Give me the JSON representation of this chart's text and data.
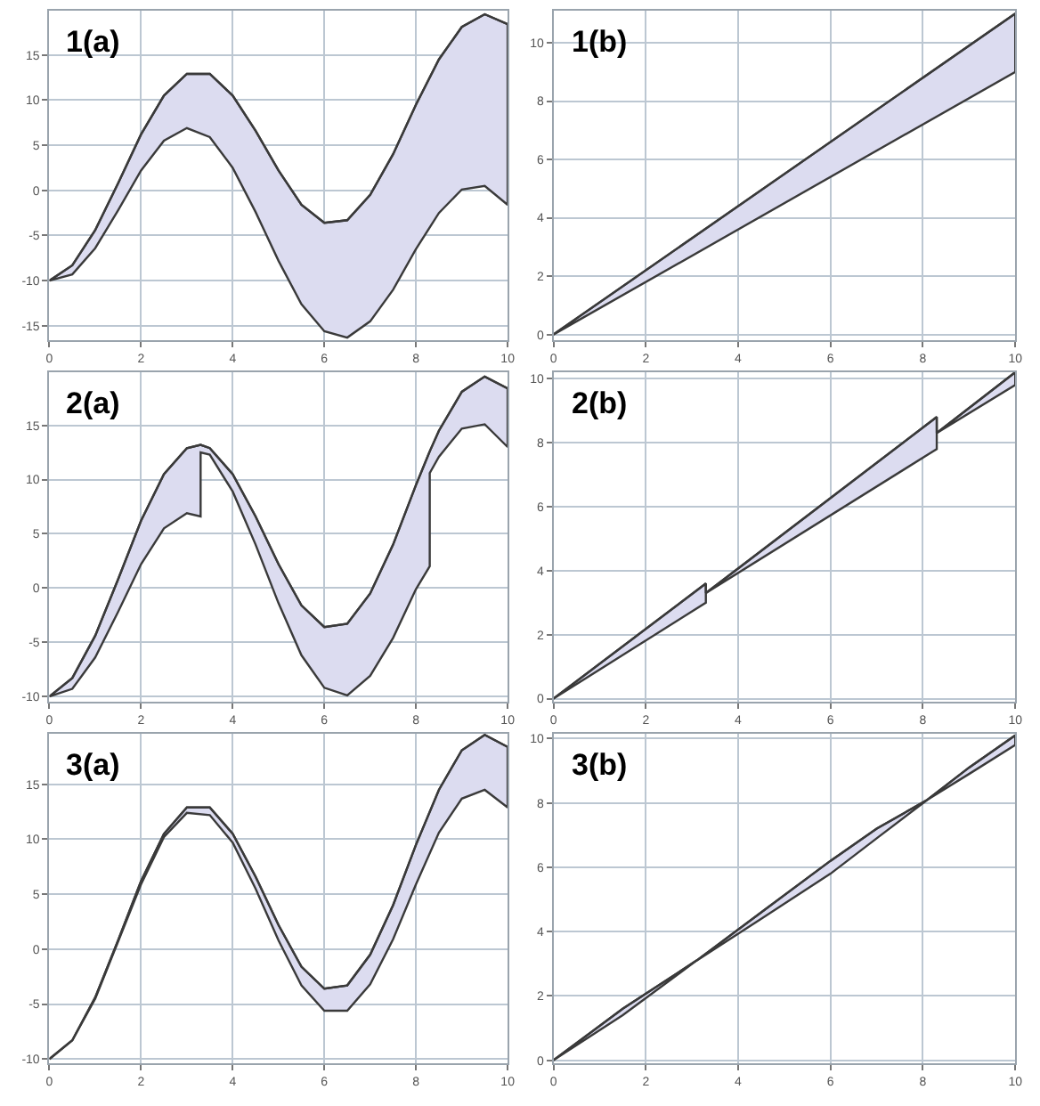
{
  "chart_data": [
    {
      "type": "line",
      "title": "1(a)",
      "xlim": [
        0,
        10
      ],
      "xticks": [
        0,
        2,
        4,
        6,
        8,
        10
      ],
      "ylim": [
        -16.6,
        19.9
      ],
      "yticks": [
        -15,
        -10,
        -5,
        0,
        5,
        10,
        15
      ],
      "grid": true,
      "series": [
        {
          "color": "#3a3a3a",
          "x": [
            0,
            0.5,
            1,
            1.5,
            2,
            2.5,
            3,
            3.5,
            4,
            4.5,
            5,
            5.5,
            6,
            6.5,
            7,
            7.5,
            8,
            8.5,
            9,
            9.5,
            10
          ],
          "values": [
            -10,
            -8.3,
            -4.4,
            0.8,
            6.2,
            10.5,
            12.9,
            12.9,
            10.5,
            6.6,
            2.2,
            -1.6,
            -3.6,
            -3.3,
            -0.5,
            4.0,
            9.5,
            14.5,
            18.1,
            19.5,
            18.4
          ],
          "upper": [
            -10,
            -8.3,
            -4.4,
            0.8,
            6.2,
            10.5,
            12.9,
            12.9,
            10.5,
            6.6,
            2.2,
            -1.6,
            -3.6,
            -3.3,
            -0.5,
            4.0,
            9.5,
            14.5,
            18.1,
            19.5,
            18.4
          ],
          "lower": [
            -10,
            -9.3,
            -6.4,
            -2.2,
            2.2,
            5.5,
            6.9,
            5.9,
            2.5,
            -2.4,
            -7.8,
            -12.6,
            -15.6,
            -16.3,
            -14.5,
            -11.0,
            -6.5,
            -2.5,
            0.1,
            0.5,
            -1.6
          ]
        }
      ]
    },
    {
      "type": "line",
      "title": "1(b)",
      "xlim": [
        0,
        10
      ],
      "xticks": [
        0,
        2,
        4,
        6,
        8,
        10
      ],
      "ylim": [
        -0.2,
        11.1
      ],
      "yticks": [
        0,
        2,
        4,
        6,
        8,
        10
      ],
      "grid": true,
      "series": [
        {
          "color": "#3a3a3a",
          "x": [
            0,
            10
          ],
          "values": [
            0,
            11
          ],
          "upper": [
            0,
            11
          ],
          "lower": [
            0,
            9
          ]
        }
      ]
    },
    {
      "type": "line",
      "title": "2(a)",
      "xlim": [
        0,
        10
      ],
      "xticks": [
        0,
        2,
        4,
        6,
        8,
        10
      ],
      "ylim": [
        -10.5,
        19.9
      ],
      "yticks": [
        -10,
        -5,
        0,
        5,
        10,
        15
      ],
      "grid": true,
      "series": [
        {
          "color": "#3a3a3a",
          "x": [
            0,
            0.5,
            1,
            1.5,
            2,
            2.5,
            3,
            3.3,
            3.3,
            3.5,
            4,
            4.5,
            5,
            5.5,
            6,
            6.5,
            7,
            7.5,
            8,
            8.3,
            8.3,
            8.5,
            9,
            9.5,
            10
          ],
          "values": [
            -10,
            -8.3,
            -4.4,
            0.8,
            6.2,
            10.5,
            12.9,
            13.2,
            13.2,
            12.9,
            10.5,
            6.6,
            2.2,
            -1.6,
            -3.6,
            -3.3,
            -0.5,
            4.0,
            9.5,
            12.6,
            12.6,
            14.5,
            18.1,
            19.5,
            18.4
          ],
          "upper": [
            -10,
            -8.3,
            -4.4,
            0.8,
            6.2,
            10.5,
            12.9,
            13.2,
            13.2,
            12.9,
            10.5,
            6.6,
            2.2,
            -1.6,
            -3.6,
            -3.3,
            -0.5,
            4.0,
            9.5,
            12.6,
            12.6,
            14.5,
            18.1,
            19.5,
            18.4
          ],
          "lower": [
            -10,
            -9.3,
            -6.4,
            -2.2,
            2.2,
            5.5,
            6.9,
            6.6,
            12.5,
            12.3,
            8.9,
            4.0,
            -1.4,
            -6.2,
            -9.2,
            -9.9,
            -8.1,
            -4.6,
            -0.1,
            2.0,
            10.6,
            12.1,
            14.7,
            15.1,
            13.0
          ]
        }
      ]
    },
    {
      "type": "line",
      "title": "2(b)",
      "xlim": [
        0,
        10
      ],
      "xticks": [
        0,
        2,
        4,
        6,
        8,
        10
      ],
      "ylim": [
        -0.1,
        10.2
      ],
      "yticks": [
        0,
        2,
        4,
        6,
        8,
        10
      ],
      "grid": true,
      "series": [
        {
          "color": "#3a3a3a",
          "x": [
            0,
            3.3,
            3.3,
            8.3,
            8.3,
            10
          ],
          "values": [
            0,
            3.6,
            3.3,
            8.8,
            8.3,
            10.2
          ],
          "upper": [
            0,
            3.6,
            3.3,
            8.8,
            8.3,
            10.2
          ],
          "lower": [
            0,
            3.0,
            3.3,
            7.8,
            8.3,
            9.8
          ]
        }
      ]
    },
    {
      "type": "line",
      "title": "3(a)",
      "xlim": [
        0,
        10
      ],
      "xticks": [
        0,
        2,
        4,
        6,
        8,
        10
      ],
      "ylim": [
        -10.4,
        19.6
      ],
      "yticks": [
        -10,
        -5,
        0,
        5,
        10,
        15
      ],
      "grid": true,
      "series": [
        {
          "color": "#3a3a3a",
          "x": [
            0,
            0.5,
            1,
            1.5,
            2,
            2.5,
            3,
            3.5,
            4,
            4.5,
            5,
            5.5,
            6,
            6.5,
            7,
            7.5,
            8,
            8.5,
            9,
            9.5,
            10
          ],
          "values": [
            -10,
            -8.3,
            -4.4,
            0.8,
            6.2,
            10.5,
            12.9,
            12.9,
            10.5,
            6.6,
            2.2,
            -1.6,
            -3.6,
            -3.3,
            -0.5,
            4.0,
            9.5,
            14.5,
            18.1,
            19.5,
            18.4
          ],
          "upper": [
            -10,
            -8.3,
            -4.4,
            0.8,
            6.2,
            10.5,
            12.9,
            12.9,
            10.5,
            6.6,
            2.2,
            -1.6,
            -3.6,
            -3.3,
            -0.5,
            4.0,
            9.5,
            14.5,
            18.1,
            19.5,
            18.4
          ],
          "lower": [
            -10,
            -8.3,
            -4.5,
            0.7,
            5.9,
            10.2,
            12.4,
            12.2,
            9.7,
            5.5,
            0.8,
            -3.3,
            -5.6,
            -5.6,
            -3.2,
            0.9,
            5.9,
            10.6,
            13.7,
            14.5,
            12.9
          ]
        }
      ]
    },
    {
      "type": "line",
      "title": "3(b)",
      "xlim": [
        0,
        10
      ],
      "xticks": [
        0,
        2,
        4,
        6,
        8,
        10
      ],
      "ylim": [
        -0.1,
        10.15
      ],
      "yticks": [
        0,
        2,
        4,
        6,
        8,
        10
      ],
      "grid": true,
      "series": [
        {
          "color": "#3a3a3a",
          "x": [
            0,
            1.5,
            3.1,
            4.5,
            6,
            7,
            8.1,
            9,
            10
          ],
          "values": [
            0,
            1.6,
            3.1,
            4.6,
            6.2,
            7.2,
            8.1,
            9.1,
            10.1
          ],
          "upper": [
            0,
            1.6,
            3.1,
            4.6,
            6.2,
            7.2,
            8.1,
            9.1,
            10.1
          ],
          "lower": [
            0,
            1.4,
            3.1,
            4.4,
            5.8,
            6.9,
            8.1,
            8.9,
            9.8
          ]
        }
      ]
    }
  ]
}
